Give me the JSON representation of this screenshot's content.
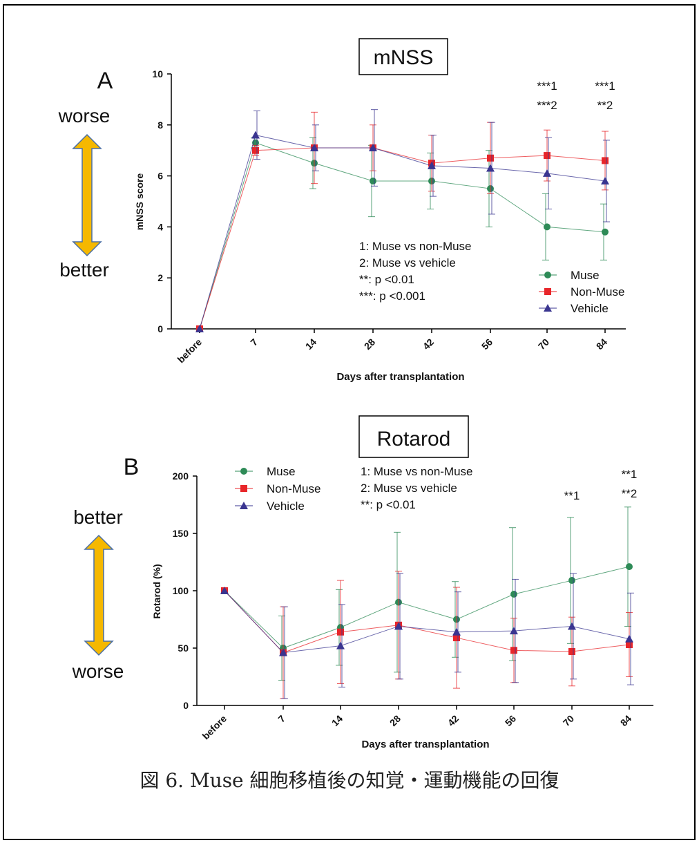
{
  "caption": "図 6.  Muse 細胞移植後の知覚・運動機能の回復",
  "colors": {
    "muse": "#2e8b57",
    "nonmuse": "#e8262a",
    "vehicle": "#3a3590",
    "arrow": "#f5b800",
    "arrow_edge": "#4a6fa5"
  },
  "chart_data": [
    {
      "type": "line",
      "panel_letter": "A",
      "title": "mNSS",
      "xlabel": "Days after transplantation",
      "ylabel": "mNSS score",
      "categories": [
        "before",
        "7",
        "14",
        "28",
        "42",
        "56",
        "70",
        "84"
      ],
      "ylim": [
        0,
        10
      ],
      "yticks": [
        0,
        2,
        4,
        6,
        8,
        10
      ],
      "grid": false,
      "legend_position": "bottom-right",
      "series": [
        {
          "name": "Muse",
          "marker": "circle",
          "values": [
            0,
            7.3,
            6.5,
            5.8,
            5.8,
            5.5,
            4.0,
            3.8
          ],
          "err": [
            0,
            0.2,
            1.0,
            1.4,
            1.1,
            1.5,
            1.3,
            1.1
          ]
        },
        {
          "name": "Non-Muse",
          "marker": "square",
          "values": [
            0,
            7.0,
            7.1,
            7.1,
            6.5,
            6.7,
            6.8,
            6.6
          ],
          "err": [
            0,
            0.2,
            1.4,
            0.9,
            1.1,
            1.4,
            1.0,
            1.15
          ]
        },
        {
          "name": "Vehicle",
          "marker": "triangle",
          "values": [
            0,
            7.6,
            7.1,
            7.1,
            6.4,
            6.3,
            6.1,
            5.8
          ],
          "err": [
            0,
            0.95,
            0.9,
            1.5,
            1.2,
            1.8,
            1.4,
            1.6
          ]
        }
      ],
      "significance": [
        {
          "category": "70",
          "labels": [
            "***1",
            "***2"
          ]
        },
        {
          "category": "84",
          "labels": [
            "***1",
            "**2"
          ]
        }
      ],
      "stats_note": [
        "1: Muse vs non-Muse",
        "2: Muse vs vehicle",
        "**: p <0.01",
        "***: p <0.001"
      ],
      "arrow_top": "worse",
      "arrow_bottom": "better"
    },
    {
      "type": "line",
      "panel_letter": "B",
      "title": "Rotarod",
      "xlabel": "Days after transplantation",
      "ylabel": "Rotarod (%)",
      "categories": [
        "before",
        "7",
        "14",
        "28",
        "42",
        "56",
        "70",
        "84"
      ],
      "ylim": [
        0,
        200
      ],
      "yticks": [
        0,
        50,
        100,
        150,
        200
      ],
      "grid": false,
      "legend_position": "top-left",
      "series": [
        {
          "name": "Muse",
          "marker": "circle",
          "values": [
            100,
            50,
            68,
            90,
            75,
            97,
            109,
            121
          ],
          "err": [
            0,
            28,
            33,
            61,
            33,
            58,
            55,
            52
          ]
        },
        {
          "name": "Non-Muse",
          "marker": "square",
          "values": [
            100,
            46,
            64,
            70,
            59,
            48,
            47,
            53
          ],
          "err": [
            0,
            40,
            45,
            47,
            44,
            28,
            30,
            28
          ]
        },
        {
          "name": "Vehicle",
          "marker": "triangle",
          "values": [
            100,
            46,
            52,
            69,
            64,
            65,
            69,
            58
          ],
          "err": [
            0,
            40,
            36,
            46,
            35,
            45,
            46,
            40
          ]
        }
      ],
      "significance": [
        {
          "category": "70",
          "labels": [
            "**1"
          ]
        },
        {
          "category": "84",
          "labels": [
            "**1",
            "**2"
          ]
        }
      ],
      "stats_note": [
        "1: Muse vs non-Muse",
        "2: Muse vs vehicle",
        "**: p <0.01"
      ],
      "arrow_top": "better",
      "arrow_bottom": "worse"
    }
  ]
}
